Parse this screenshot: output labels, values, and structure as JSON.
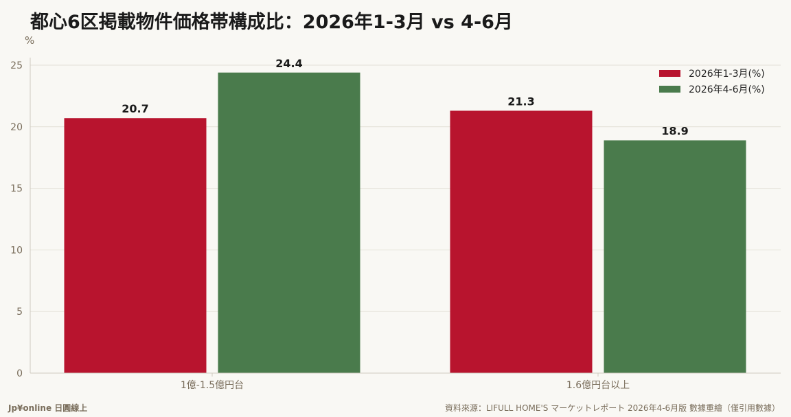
{
  "title": "都心6区掲載物件価格帯構成比：2026年1-3月 vs 4-6月",
  "footer": {
    "brand": "Jp¥online 日圓線上",
    "source": "資料來源：LIFULL HOME'S マーケットレポート 2026年4-6月版 數據重繪（僅引用數據）"
  },
  "colors": {
    "series1": "#b8142e",
    "series2": "#4a7b4c",
    "grid": "#e4e1d8",
    "axis": "#7a6e5c",
    "background": "#f9f8f4"
  },
  "chart_data": {
    "type": "bar",
    "title": "都心6区掲載物件価格帯構成比：2026年1-3月 vs 4-6月",
    "ylabel": "%",
    "xlabel": "",
    "categories": [
      "1億-1.5億円台",
      "1.6億円台以上"
    ],
    "series": [
      {
        "name": "2026年1-3月(%)",
        "values": [
          20.7,
          21.3
        ]
      },
      {
        "name": "2026年4-6月(%)",
        "values": [
          24.4,
          18.9
        ]
      }
    ],
    "ylim": [
      0,
      25
    ],
    "yticks": [
      0,
      5,
      10,
      15,
      20,
      25
    ],
    "grid": true,
    "legend": "top-right"
  }
}
